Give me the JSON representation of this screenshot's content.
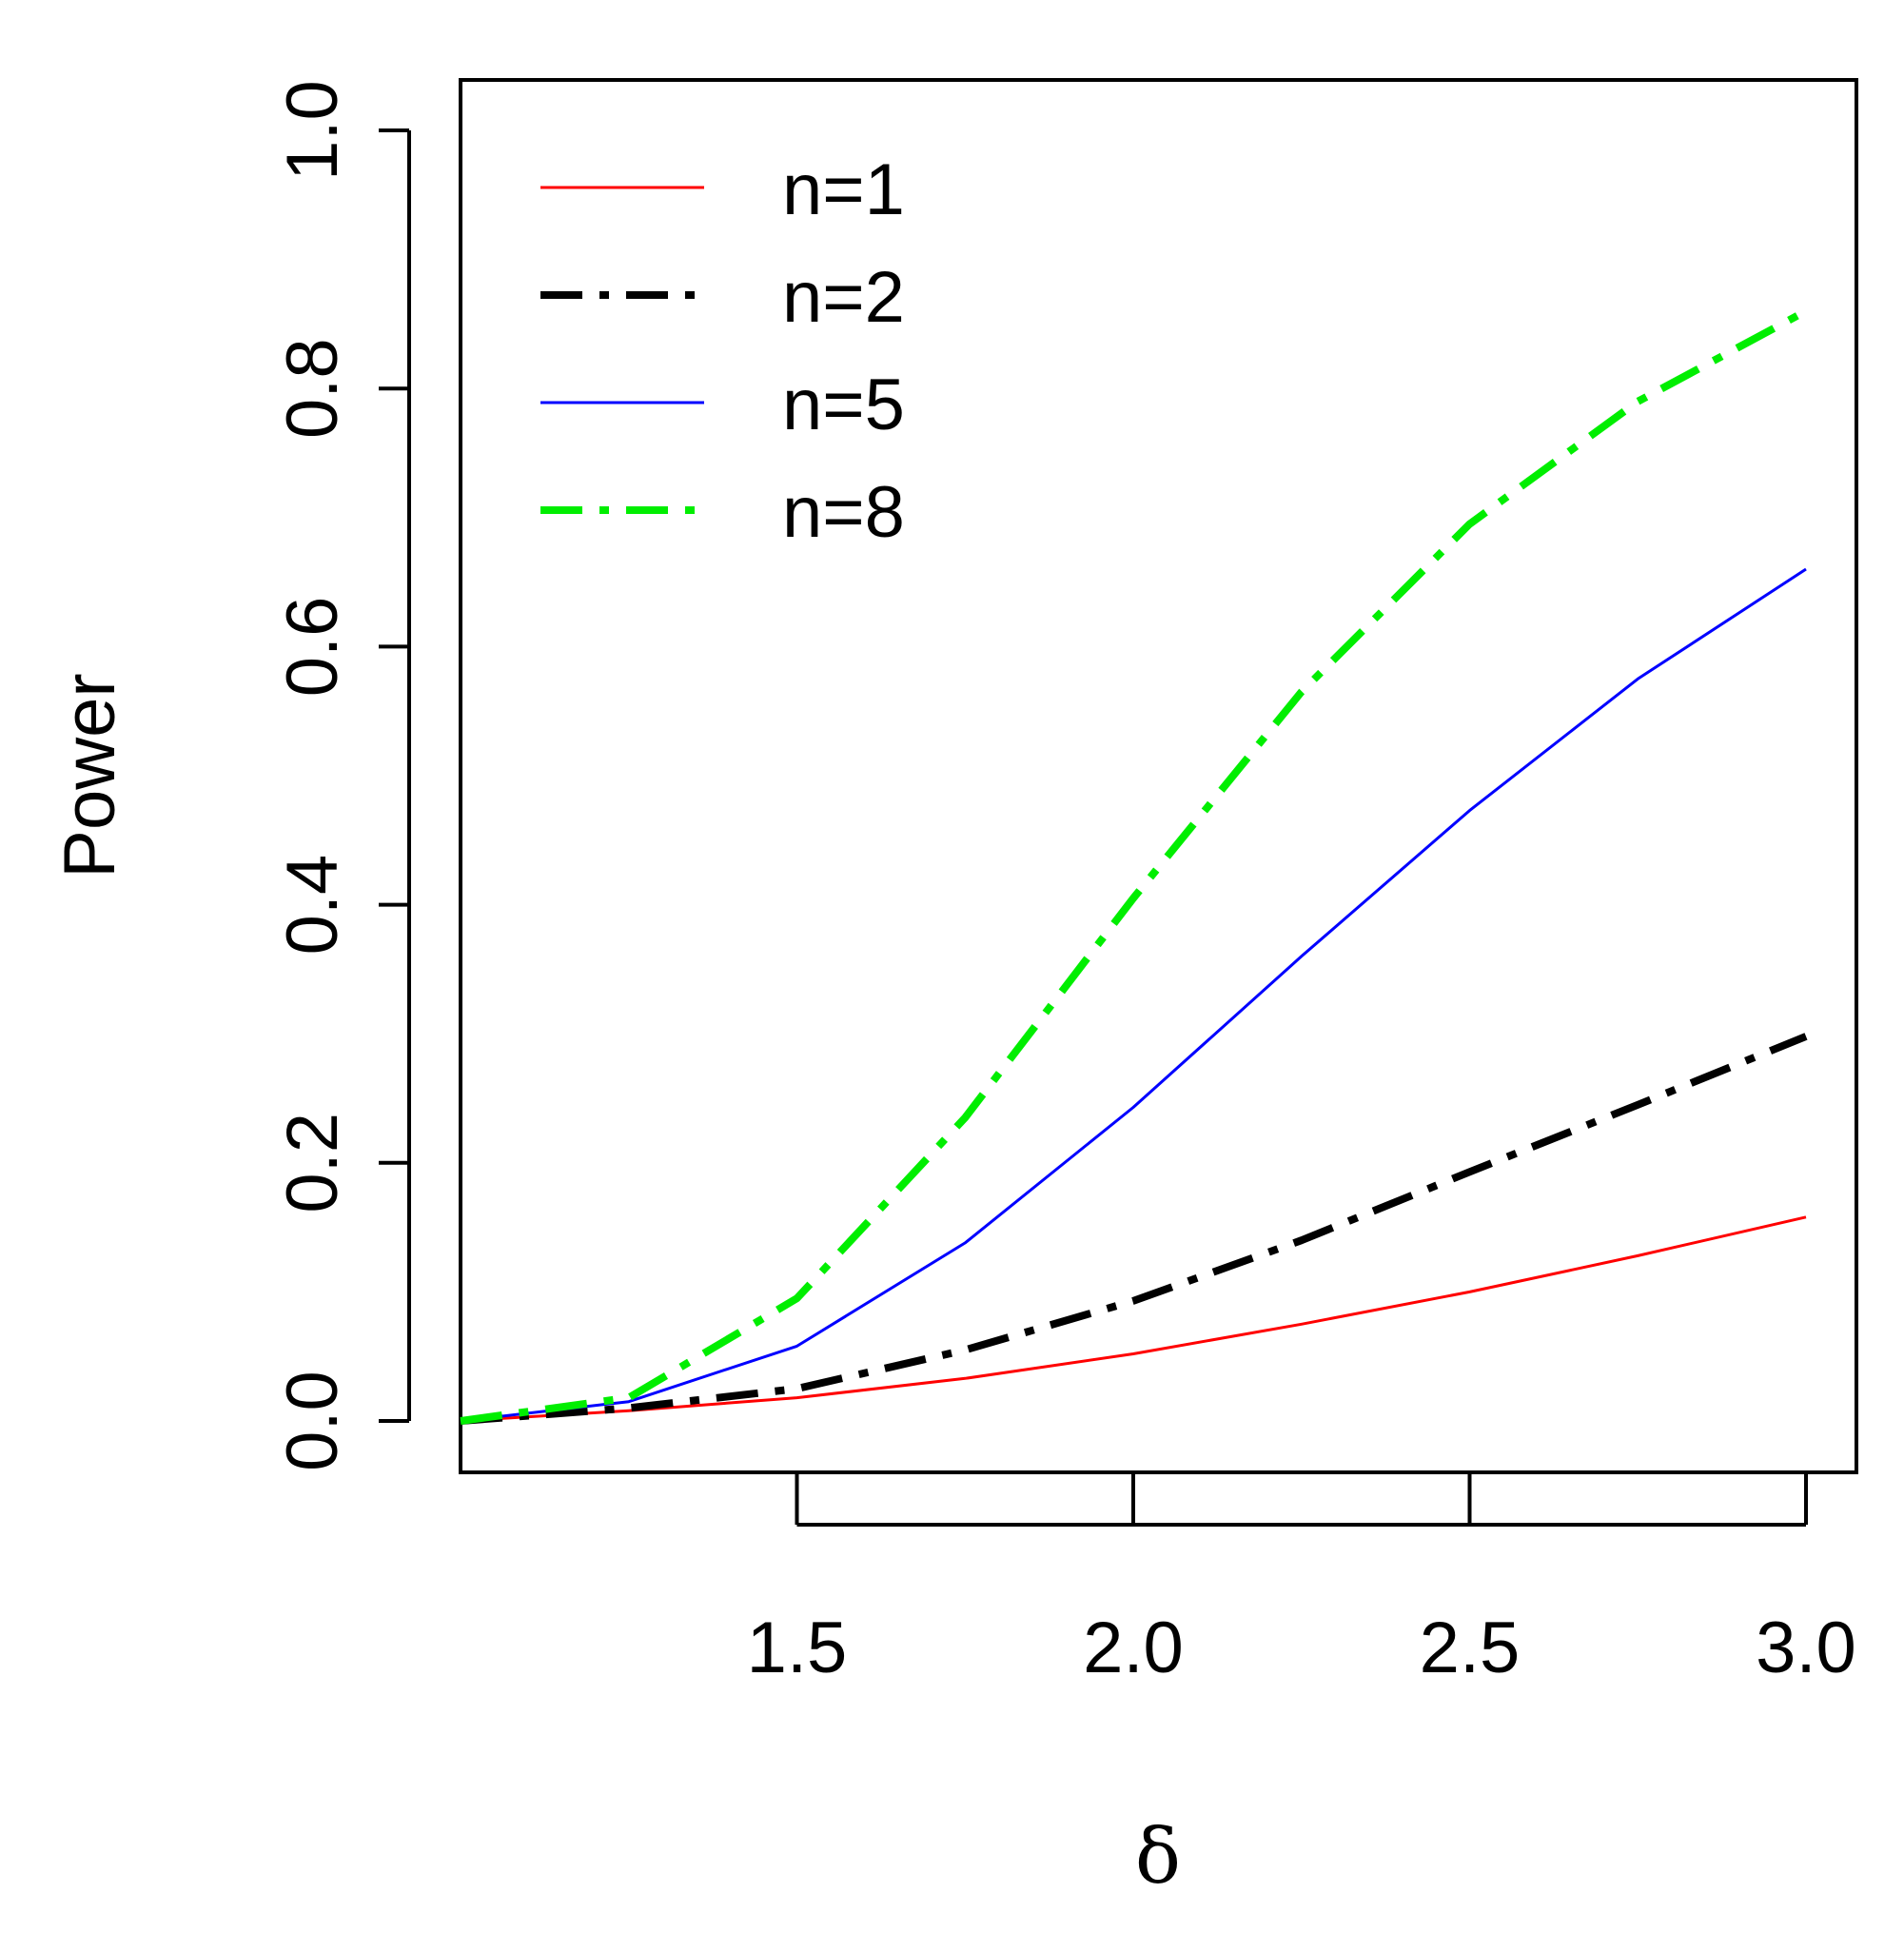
{
  "chart_data": {
    "type": "line",
    "title": "",
    "xlabel": "δ",
    "ylabel": "Power",
    "xlim": [
      1.0,
      3.0
    ],
    "ylim": [
      0.0,
      1.0
    ],
    "x_ticks": [
      1.5,
      2.0,
      2.5,
      3.0
    ],
    "x_tick_labels": [
      "1.5",
      "2.0",
      "2.5",
      "3.0"
    ],
    "y_ticks": [
      0.0,
      0.2,
      0.4,
      0.6,
      0.8,
      1.0
    ],
    "y_tick_labels": [
      "0.0",
      "0.2",
      "0.4",
      "0.6",
      "0.8",
      "1.0"
    ],
    "grid": false,
    "legend_position": "top-left",
    "x": [
      1.0,
      1.25,
      1.5,
      1.75,
      2.0,
      2.25,
      2.5,
      2.75,
      3.0
    ],
    "series": [
      {
        "name": "n=1",
        "color": "#ff0000",
        "style": "solid",
        "values": [
          0.0,
          0.008,
          0.018,
          0.033,
          0.052,
          0.075,
          0.1,
          0.128,
          0.158
        ]
      },
      {
        "name": "n=2",
        "color": "#000000",
        "style": "dashdot",
        "values": [
          0.0,
          0.01,
          0.025,
          0.055,
          0.093,
          0.14,
          0.193,
          0.245,
          0.298
        ]
      },
      {
        "name": "n=5",
        "color": "#0000ff",
        "style": "solid",
        "values": [
          0.0,
          0.015,
          0.058,
          0.138,
          0.243,
          0.36,
          0.473,
          0.575,
          0.66
        ]
      },
      {
        "name": "n=8",
        "color": "#00ee00",
        "style": "dashdot",
        "values": [
          0.0,
          0.018,
          0.095,
          0.235,
          0.405,
          0.565,
          0.695,
          0.79,
          0.86
        ]
      }
    ]
  }
}
